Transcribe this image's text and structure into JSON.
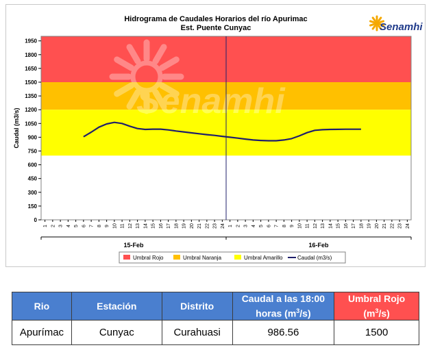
{
  "chart_data": {
    "type": "line",
    "title": "Hidrograma de Caudales Horarios del río Apurimac",
    "subtitle": "Est. Puente Cunyac",
    "ylabel": "Caudal (m3/s)",
    "ylim": [
      0,
      2000
    ],
    "yticks": [
      0,
      150,
      300,
      450,
      600,
      750,
      900,
      1050,
      1200,
      1350,
      1500,
      1650,
      1800,
      1950
    ],
    "xtick_labels": [
      "1",
      "2",
      "3",
      "4",
      "5",
      "6",
      "7",
      "8",
      "9",
      "10",
      "11",
      "12",
      "13",
      "14",
      "15",
      "16",
      "17",
      "18",
      "19",
      "20",
      "21",
      "22",
      "23",
      "24",
      "1",
      "2",
      "3",
      "4",
      "5",
      "6",
      "7",
      "8",
      "9",
      "10",
      "11",
      "12",
      "13",
      "14",
      "15",
      "16",
      "17",
      "18",
      "19",
      "20",
      "21",
      "22",
      "23",
      "24"
    ],
    "day_labels": [
      "15-Feb",
      "16-Feb"
    ],
    "thresholds": [
      {
        "name": "Umbral Rojo",
        "from": 1500,
        "to": 2000,
        "color": "#ff5050"
      },
      {
        "name": "Umbral Naranja",
        "from": 1200,
        "to": 1500,
        "color": "#ffc000"
      },
      {
        "name": "Umbral Amarillo",
        "from": 700,
        "to": 1200,
        "color": "#ffff00"
      }
    ],
    "series": [
      {
        "name": "Caudal (m3/s)",
        "color": "#1f1f6b",
        "x": [
          6,
          7,
          8,
          9,
          10,
          11,
          12,
          13,
          14,
          15,
          16,
          17,
          18,
          19,
          20,
          21,
          22,
          23,
          24,
          25,
          26,
          27,
          28,
          29,
          30,
          31,
          32,
          33,
          34,
          35,
          36,
          37,
          38,
          39,
          40,
          41,
          42
        ],
        "values": [
          905,
          955,
          1010,
          1045,
          1062,
          1050,
          1020,
          995,
          985,
          988,
          988,
          980,
          968,
          958,
          948,
          938,
          928,
          920,
          910,
          900,
          890,
          880,
          870,
          865,
          862,
          862,
          870,
          885,
          915,
          950,
          975,
          982,
          985,
          986,
          987,
          987,
          987
        ]
      }
    ],
    "legend": [
      "Umbral Rojo",
      "Umbral Naranja",
      "Umbral Amarillo",
      "Caudal (m3/s)"
    ],
    "legend_position": "bottom",
    "grid": false
  },
  "watermark": {
    "text": "Senamhi"
  },
  "logo": {
    "text": "Senamhi"
  },
  "table": {
    "headers": [
      "Rio",
      "Estación",
      "Distrito",
      "Caudal a las 18:00 horas (m3/s)",
      "Umbral Rojo (m3/s)"
    ],
    "row": [
      "Apurímac",
      "Cunyac",
      "Curahuasi",
      "986.56",
      "1500"
    ]
  }
}
